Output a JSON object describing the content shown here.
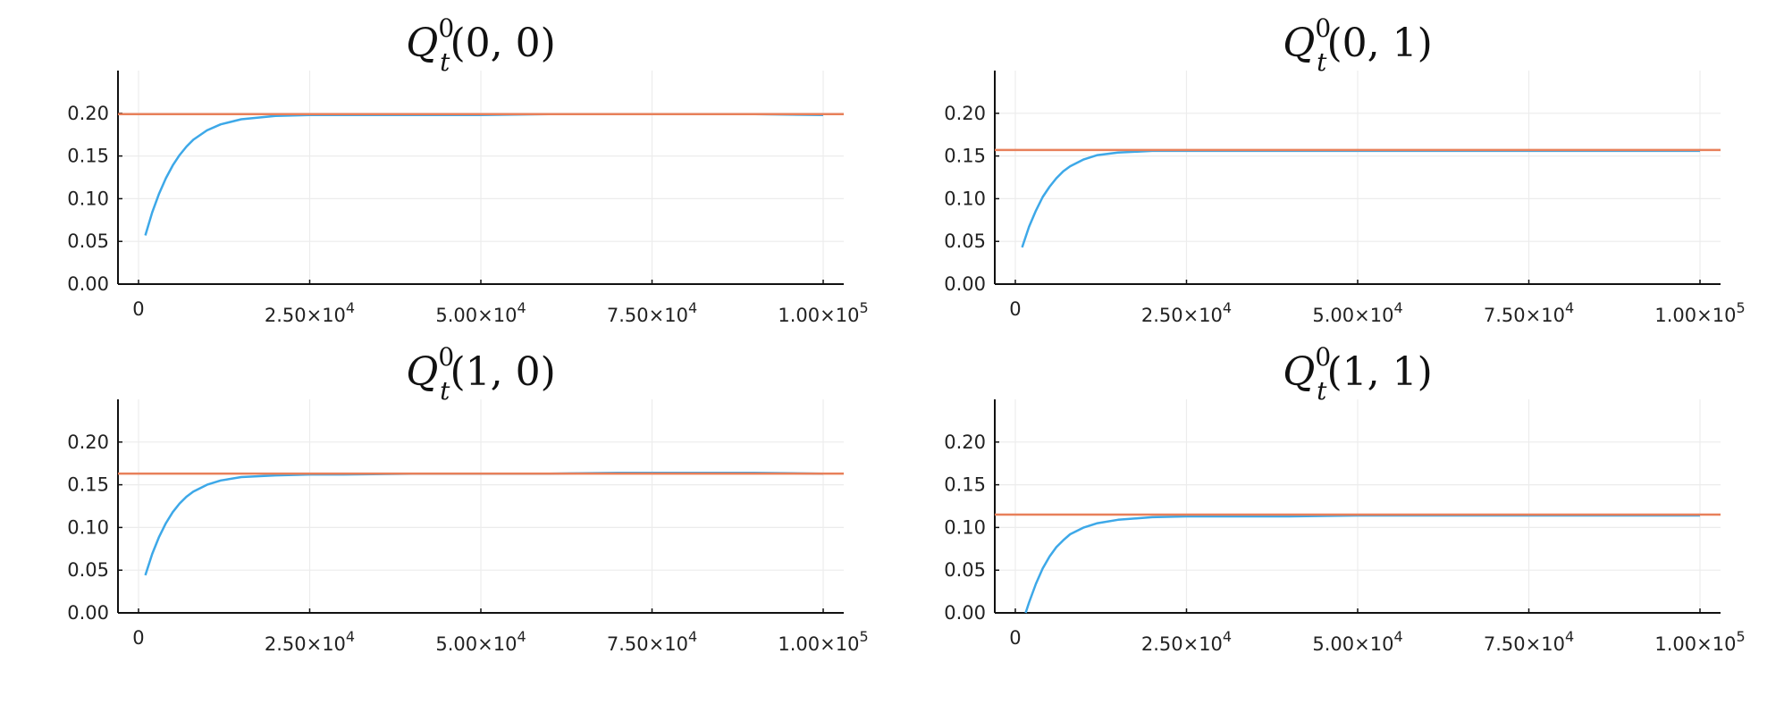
{
  "chart_data": [
    {
      "type": "line",
      "title": {
        "base": "Q",
        "sup": "0",
        "sub": "t",
        "args": "(0, 0)"
      },
      "xlabel": "",
      "ylabel": "",
      "xlim": [
        -3000,
        103000
      ],
      "ylim": [
        0,
        0.25
      ],
      "x_ticks": [
        {
          "value": 0,
          "mant": "0",
          "exp": ""
        },
        {
          "value": 25000,
          "mant": "2.50×10",
          "exp": "4"
        },
        {
          "value": 50000,
          "mant": "5.00×10",
          "exp": "4"
        },
        {
          "value": 75000,
          "mant": "7.50×10",
          "exp": "4"
        },
        {
          "value": 100000,
          "mant": "1.00×10",
          "exp": "5"
        }
      ],
      "y_ticks": [
        {
          "value": 0,
          "label": "0.00"
        },
        {
          "value": 0.05,
          "label": "0.05"
        },
        {
          "value": 0.1,
          "label": "0.10"
        },
        {
          "value": 0.15,
          "label": "0.15"
        },
        {
          "value": 0.2,
          "label": "0.20"
        }
      ],
      "grid": true,
      "legend": "none",
      "series": [
        {
          "kind": "curve",
          "color": "#3da8e8",
          "x": [
            1000,
            2000,
            3000,
            4000,
            5000,
            6000,
            7000,
            8000,
            10000,
            12000,
            15000,
            20000,
            25000,
            30000,
            40000,
            50000,
            60000,
            70000,
            80000,
            90000,
            100000
          ],
          "y": [
            0.057,
            0.084,
            0.106,
            0.124,
            0.139,
            0.151,
            0.161,
            0.169,
            0.18,
            0.187,
            0.193,
            0.197,
            0.198,
            0.198,
            0.198,
            0.198,
            0.199,
            0.199,
            0.199,
            0.199,
            0.198
          ]
        },
        {
          "kind": "reference",
          "color": "#e8805a",
          "y": 0.199
        }
      ]
    },
    {
      "type": "line",
      "title": {
        "base": "Q",
        "sup": "0",
        "sub": "t",
        "args": "(0, 1)"
      },
      "xlabel": "",
      "ylabel": "",
      "xlim": [
        -3000,
        103000
      ],
      "ylim": [
        0,
        0.25
      ],
      "x_ticks": [
        {
          "value": 0,
          "mant": "0",
          "exp": ""
        },
        {
          "value": 25000,
          "mant": "2.50×10",
          "exp": "4"
        },
        {
          "value": 50000,
          "mant": "5.00×10",
          "exp": "4"
        },
        {
          "value": 75000,
          "mant": "7.50×10",
          "exp": "4"
        },
        {
          "value": 100000,
          "mant": "1.00×10",
          "exp": "5"
        }
      ],
      "y_ticks": [
        {
          "value": 0,
          "label": "0.00"
        },
        {
          "value": 0.05,
          "label": "0.05"
        },
        {
          "value": 0.1,
          "label": "0.10"
        },
        {
          "value": 0.15,
          "label": "0.15"
        },
        {
          "value": 0.2,
          "label": "0.20"
        }
      ],
      "grid": true,
      "legend": "none",
      "series": [
        {
          "kind": "curve",
          "color": "#3da8e8",
          "x": [
            1000,
            2000,
            3000,
            4000,
            5000,
            6000,
            7000,
            8000,
            10000,
            12000,
            15000,
            20000,
            25000,
            30000,
            40000,
            50000,
            60000,
            70000,
            80000,
            90000,
            100000
          ],
          "y": [
            0.043,
            0.067,
            0.086,
            0.102,
            0.114,
            0.124,
            0.132,
            0.138,
            0.146,
            0.151,
            0.154,
            0.156,
            0.156,
            0.156,
            0.156,
            0.156,
            0.156,
            0.156,
            0.156,
            0.156,
            0.156
          ]
        },
        {
          "kind": "reference",
          "color": "#e8805a",
          "y": 0.157
        }
      ]
    },
    {
      "type": "line",
      "title": {
        "base": "Q",
        "sup": "0",
        "sub": "t",
        "args": "(1, 0)"
      },
      "xlabel": "",
      "ylabel": "",
      "xlim": [
        -3000,
        103000
      ],
      "ylim": [
        0,
        0.25
      ],
      "x_ticks": [
        {
          "value": 0,
          "mant": "0",
          "exp": ""
        },
        {
          "value": 25000,
          "mant": "2.50×10",
          "exp": "4"
        },
        {
          "value": 50000,
          "mant": "5.00×10",
          "exp": "4"
        },
        {
          "value": 75000,
          "mant": "7.50×10",
          "exp": "4"
        },
        {
          "value": 100000,
          "mant": "1.00×10",
          "exp": "5"
        }
      ],
      "y_ticks": [
        {
          "value": 0,
          "label": "0.00"
        },
        {
          "value": 0.05,
          "label": "0.05"
        },
        {
          "value": 0.1,
          "label": "0.10"
        },
        {
          "value": 0.15,
          "label": "0.15"
        },
        {
          "value": 0.2,
          "label": "0.20"
        }
      ],
      "grid": true,
      "legend": "none",
      "series": [
        {
          "kind": "curve",
          "color": "#3da8e8",
          "x": [
            1000,
            2000,
            3000,
            4000,
            5000,
            6000,
            7000,
            8000,
            10000,
            12000,
            15000,
            20000,
            25000,
            30000,
            40000,
            50000,
            60000,
            70000,
            80000,
            90000,
            100000
          ],
          "y": [
            0.044,
            0.069,
            0.089,
            0.105,
            0.118,
            0.128,
            0.136,
            0.142,
            0.15,
            0.155,
            0.159,
            0.161,
            0.162,
            0.162,
            0.163,
            0.163,
            0.163,
            0.164,
            0.164,
            0.164,
            0.163
          ]
        },
        {
          "kind": "reference",
          "color": "#e8805a",
          "y": 0.163
        }
      ]
    },
    {
      "type": "line",
      "title": {
        "base": "Q",
        "sup": "0",
        "sub": "t",
        "args": "(1, 1)"
      },
      "xlabel": "",
      "ylabel": "",
      "xlim": [
        -3000,
        103000
      ],
      "ylim": [
        0,
        0.25
      ],
      "x_ticks": [
        {
          "value": 0,
          "mant": "0",
          "exp": ""
        },
        {
          "value": 25000,
          "mant": "2.50×10",
          "exp": "4"
        },
        {
          "value": 50000,
          "mant": "5.00×10",
          "exp": "4"
        },
        {
          "value": 75000,
          "mant": "7.50×10",
          "exp": "4"
        },
        {
          "value": 100000,
          "mant": "1.00×10",
          "exp": "5"
        }
      ],
      "y_ticks": [
        {
          "value": 0,
          "label": "0.00"
        },
        {
          "value": 0.05,
          "label": "0.05"
        },
        {
          "value": 0.1,
          "label": "0.10"
        },
        {
          "value": 0.15,
          "label": "0.15"
        },
        {
          "value": 0.2,
          "label": "0.20"
        }
      ],
      "grid": true,
      "legend": "none",
      "series": [
        {
          "kind": "curve",
          "color": "#3da8e8",
          "x": [
            1500,
            2000,
            3000,
            4000,
            5000,
            6000,
            7000,
            8000,
            10000,
            12000,
            15000,
            20000,
            25000,
            30000,
            40000,
            50000,
            60000,
            70000,
            80000,
            90000,
            100000
          ],
          "y": [
            0.0,
            0.012,
            0.034,
            0.052,
            0.066,
            0.077,
            0.085,
            0.092,
            0.1,
            0.105,
            0.109,
            0.112,
            0.113,
            0.113,
            0.113,
            0.114,
            0.114,
            0.114,
            0.114,
            0.114,
            0.114
          ]
        },
        {
          "kind": "reference",
          "color": "#e8805a",
          "y": 0.115
        }
      ]
    }
  ]
}
